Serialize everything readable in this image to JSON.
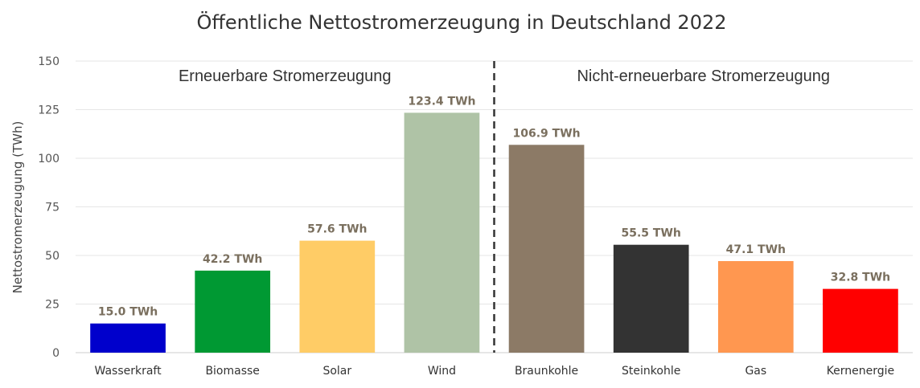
{
  "chart_data": {
    "type": "bar",
    "title": "Öffentliche Nettostromerzeugung in Deutschland 2022",
    "ylabel": "Nettostromerzeugung (TWh)",
    "xlabel": "",
    "ylim": [
      0,
      150
    ],
    "yticks": [
      "0",
      "25",
      "50",
      "75",
      "100",
      "125",
      "150"
    ],
    "grid": true,
    "categories": [
      "Wasserkraft",
      "Biomasse",
      "Solar",
      "Wind",
      "Braunkohle",
      "Steinkohle",
      "Gas",
      "Kernenergie"
    ],
    "values": [
      15.0,
      42.2,
      57.6,
      123.4,
      106.9,
      55.5,
      47.1,
      32.8
    ],
    "data_labels": [
      "15.0 TWh",
      "42.2 TWh",
      "57.6 TWh",
      "123.4 TWh",
      "106.9 TWh",
      "55.5 TWh",
      "47.1 TWh",
      "32.8 TWh"
    ],
    "colors": [
      "#0000cc",
      "#009933",
      "#ffcc66",
      "#afc3a6",
      "#8c7a66",
      "#333333",
      "#ff9750",
      "#ff0000"
    ],
    "groups": [
      {
        "label": "Erneuerbare Stromerzeugung",
        "from": 0,
        "to": 3
      },
      {
        "label": "Nicht-erneuerbare Stromerzeugung",
        "from": 4,
        "to": 7
      }
    ]
  }
}
